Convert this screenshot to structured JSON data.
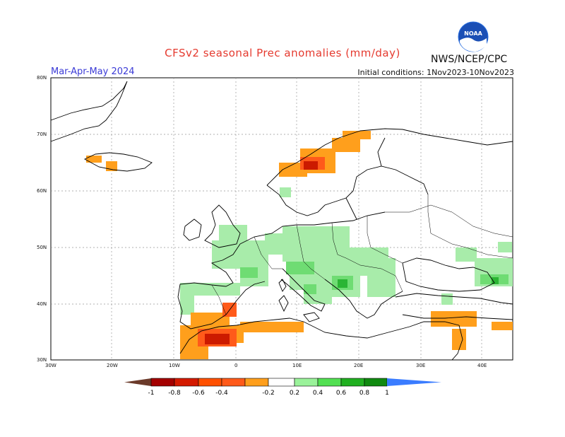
{
  "title": "CFSv2 seasonal Prec anomalies (mm/day)",
  "season": "Mar-Apr-May 2024",
  "initial_conditions": "Initial conditions:  1Nov2023-10Nov2023",
  "agency": "NWS/NCEP/CPC",
  "logo_text": "NOAA",
  "lat_labels": [
    "80N",
    "70N",
    "60N",
    "50N",
    "40N",
    "30N"
  ],
  "lon_labels": [
    "30W",
    "20W",
    "10W",
    "0",
    "10E",
    "20E",
    "30E",
    "40E"
  ],
  "legend": {
    "ticks": [
      "-1",
      "-0.8",
      "-0.6",
      "-0.4",
      "-0.2",
      "0.2",
      "0.4",
      "0.6",
      "0.8",
      "1"
    ],
    "colors": [
      "#6b3a2a",
      "#a40000",
      "#d41a00",
      "#ff5000",
      "#ff9c00",
      "#ffffff",
      "#9af29a",
      "#52e052",
      "#20b020",
      "#108a10",
      "#3a7cff"
    ]
  },
  "anomaly_colors": {
    "dry_light": "#ff9f1c",
    "dry_mid": "#ff5a1a",
    "dry_strong": "#cc1a00",
    "wet_light": "#a8ecaa",
    "wet_mid": "#6fdc73",
    "wet_strong": "#2bb534"
  }
}
